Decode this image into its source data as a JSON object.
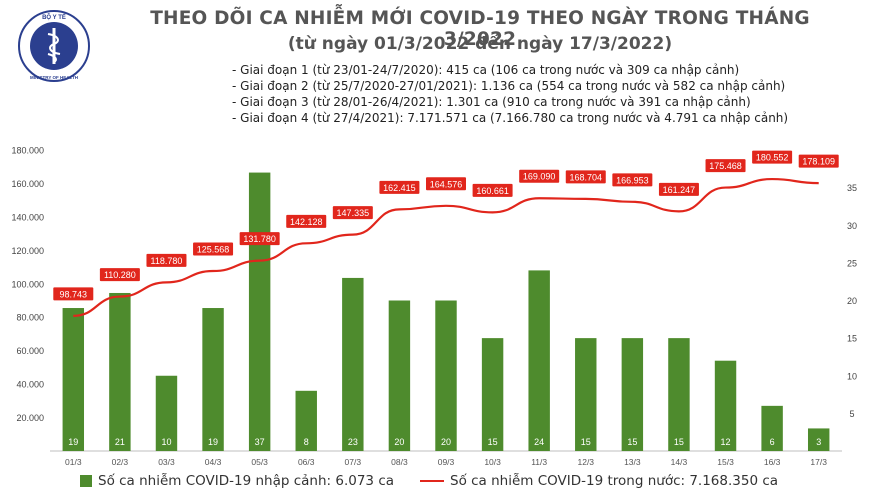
{
  "title_line1": "THEO DÕI CA NHIỄM MỚI COVID-19 THEO NGÀY TRONG THÁNG 3/2022",
  "title_line2": "(từ ngày 01/3/2022 đến ngày 17/3/2022)",
  "logo": {
    "top_text": "BỘ Y TẾ",
    "bottom_text": "MINISTRY OF HEALTH",
    "color": "#2b3f8f"
  },
  "phases": [
    "- Giai đoạn 1 (từ 23/01-24/7/2020): 415 ca (106 ca trong nước và 309 ca nhập cảnh)",
    "- Giai đoạn 2 (từ 25/7/2020-27/01/2021): 1.136 ca (554 ca trong nước và 582 ca nhập cảnh)",
    "- Giai đoạn 3 (từ 28/01-26/4/2021): 1.301 ca (910 ca trong nước và 391 ca nhập cảnh)",
    "- Giai đoạn 4 (từ 27/4/2021): 7.171.571 ca (7.166.780 ca trong nước và 4.791 ca nhập cảnh)"
  ],
  "legend": {
    "bar_label": "Số ca nhiễm COVID-19 nhập cảnh: 6.073 ca",
    "line_label": "Số ca nhiễm COVID-19 trong nước: 7.168.350 ca"
  },
  "chart_data": {
    "type": "bar+line",
    "categories": [
      "01/3",
      "02/3",
      "03/3",
      "04/3",
      "05/3",
      "06/3",
      "07/3",
      "08/3",
      "09/3",
      "10/3",
      "11/3",
      "12/3",
      "13/3",
      "14/3",
      "15/3",
      "16/3",
      "17/3"
    ],
    "series": [
      {
        "name": "Số ca nhiễm COVID-19 nhập cảnh: 6.073 ca",
        "type": "bar",
        "axis": "right",
        "color": "#4e8b2d",
        "values": [
          19,
          21,
          10,
          19,
          37,
          8,
          23,
          20,
          20,
          15,
          24,
          15,
          15,
          15,
          12,
          6,
          3
        ],
        "labels": [
          "19",
          "21",
          "10",
          "19",
          "37",
          "8",
          "23",
          "20",
          "20",
          "15",
          "24",
          "15",
          "15",
          "15",
          "12",
          "6",
          "3"
        ]
      },
      {
        "name": "Số ca nhiễm COVID-19 trong nước: 7.168.350 ca",
        "type": "line",
        "axis": "left",
        "color": "#e1261c",
        "values": [
          98743,
          110280,
          118780,
          125568,
          131780,
          142128,
          147335,
          162415,
          164576,
          160661,
          169090,
          168704,
          166953,
          161247,
          175468,
          180552,
          178109
        ],
        "labels": [
          "98.743",
          "110.280",
          "118.780",
          "125.568",
          "131.780",
          "142.128",
          "147.335",
          "162.415",
          "164.576",
          "160.661",
          "169.090",
          "168.704",
          "166.953",
          "161.247",
          "175.468",
          "180.552",
          "178.109"
        ]
      }
    ],
    "y_left": {
      "min": 0,
      "max": 180000,
      "ticks": [
        "20.000",
        "40.000",
        "60.000",
        "80.000",
        "100.000",
        "120.000",
        "140.000",
        "160.000",
        "180.000"
      ]
    },
    "y_right": {
      "min": 0,
      "max": 40,
      "ticks": [
        "5",
        "10",
        "15",
        "20",
        "25",
        "30",
        "35"
      ]
    },
    "grid": false,
    "legend_position": "bottom"
  }
}
